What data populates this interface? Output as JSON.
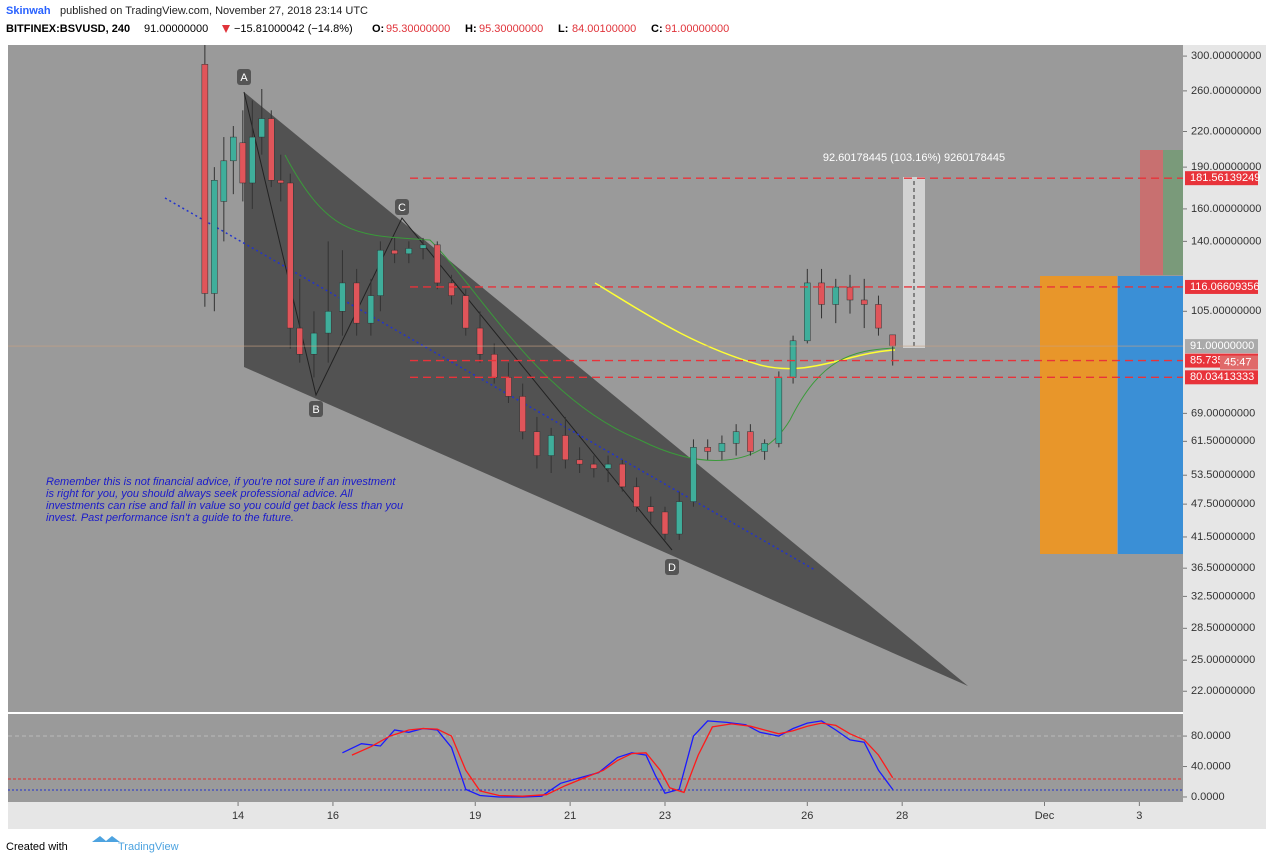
{
  "header": {
    "author": "Skinwah",
    "published": "published on TradingView.com, November 27, 2018 23:14 UTC",
    "symbol": "BITFINEX:BSVUSD, 240",
    "last": "91.00000000",
    "change": "−15.81000042 (−14.8%)",
    "ohlc": [
      {
        "label": "O:",
        "value": "95.30000000"
      },
      {
        "label": "H:",
        "value": "95.30000000"
      },
      {
        "label": "L:",
        "value": "84.00100000"
      },
      {
        "label": "C:",
        "value": "91.00000000"
      }
    ]
  },
  "annotations": {
    "disclaimer": "Remember this is not financial advice, if you're not sure if an investment is right for you, you should always seek professional advice. All investments can rise and fall in value so you could get back less than you invest. Past performance isn't a guide to the future.",
    "measure": "92.60178445 (103.16%) 9260178445",
    "points": [
      "A",
      "B",
      "C",
      "D"
    ],
    "countdown": "45:47"
  },
  "footer": {
    "created": "Created with",
    "brand": "TradingView"
  },
  "chart_data": [
    {
      "type": "candlestick",
      "log": true,
      "up_color": "#3fae9b",
      "down_color": "#e0555a",
      "xlim": [
        9.15,
        33.92
      ],
      "ylim": [
        20.2,
        314
      ],
      "xticks": [
        14,
        16,
        19,
        21,
        23,
        26,
        28,
        {
          "value": 31,
          "label": "Dec"
        },
        {
          "value": 33,
          "label": "3"
        }
      ],
      "yticks": [
        {
          "value": 300,
          "label": "300.00000000"
        },
        {
          "value": 260,
          "label": "260.00000000"
        },
        {
          "value": 220,
          "label": "220.00000000"
        },
        {
          "value": 190,
          "label": "190.00000000"
        },
        {
          "value": 160,
          "label": "160.00000000"
        },
        {
          "value": 140,
          "label": "140.00000000"
        },
        {
          "value": 105,
          "label": "105.00000000"
        },
        {
          "value": 69,
          "label": "69.00000000"
        },
        {
          "value": 61.5,
          "label": "61.50000000"
        },
        {
          "value": 53.5,
          "label": "53.50000000"
        },
        {
          "value": 47.5,
          "label": "47.50000000"
        },
        {
          "value": 41.5,
          "label": "41.50000000"
        },
        {
          "value": 36.5,
          "label": "36.50000000"
        },
        {
          "value": 32.5,
          "label": "32.50000000"
        },
        {
          "value": 28.5,
          "label": "28.50000000"
        },
        {
          "value": 25,
          "label": "25.00000000"
        },
        {
          "value": 22,
          "label": "22.00000000"
        }
      ],
      "levels": [
        {
          "value": 181.56139249,
          "label": "181.56139249",
          "color": "#e8333a"
        },
        {
          "value": 116.06609356,
          "label": "116.06609356",
          "color": "#e8333a"
        },
        {
          "value": 91,
          "label": "91.00000000",
          "color": "#aaaaaa"
        },
        {
          "value": 85.735,
          "label": "85.735",
          "color": "#e8333a"
        },
        {
          "value": 80.03413333,
          "label": "80.03413333",
          "color": "#e8333a"
        }
      ],
      "x": [
        13.3,
        13.5,
        13.7,
        13.9,
        14.1,
        14.3,
        14.5,
        14.7,
        14.9,
        15.1,
        15.3,
        15.6,
        15.9,
        16.2,
        16.5,
        16.8,
        17.0,
        17.3,
        17.6,
        17.9,
        18.2,
        18.5,
        18.8,
        19.1,
        19.4,
        19.7,
        20.0,
        20.3,
        20.6,
        20.9,
        21.2,
        21.5,
        21.8,
        22.1,
        22.4,
        22.7,
        23.0,
        23.3,
        23.6,
        23.9,
        24.2,
        24.5,
        24.8,
        25.1,
        25.4,
        25.7,
        26.0,
        26.3,
        26.6,
        26.9,
        27.2,
        27.5,
        27.8
      ],
      "open": [
        290,
        113,
        165,
        195,
        210,
        178,
        215,
        232,
        180,
        178,
        98,
        88,
        96,
        105,
        118,
        100,
        112,
        135,
        133,
        136,
        138,
        118,
        112,
        98,
        88,
        80,
        74,
        64,
        58,
        63,
        57,
        56,
        55,
        56,
        51,
        47,
        46,
        42,
        48,
        60,
        59,
        61,
        64,
        59,
        61,
        80,
        93,
        118,
        108,
        116,
        110,
        108,
        95.3
      ],
      "high": [
        314,
        190,
        215,
        225,
        240,
        250,
        262,
        240,
        200,
        185,
        120,
        105,
        140,
        135,
        125,
        120,
        140,
        142,
        140,
        142,
        140,
        122,
        115,
        105,
        92,
        85,
        78,
        68,
        65,
        68,
        60,
        58,
        58,
        57,
        53,
        49,
        47,
        50,
        62,
        62,
        63,
        66,
        66,
        62,
        82,
        95,
        125,
        125,
        120,
        122,
        120,
        112,
        95.3
      ],
      "low": [
        107,
        105,
        140,
        170,
        165,
        160,
        200,
        175,
        165,
        90,
        85,
        80,
        85,
        95,
        95,
        95,
        105,
        128,
        128,
        130,
        115,
        108,
        95,
        85,
        78,
        72,
        62,
        55,
        54,
        55,
        54,
        53,
        52,
        50,
        46,
        44,
        41,
        41,
        47,
        57,
        57,
        58,
        58,
        57,
        60,
        78,
        92,
        102,
        100,
        104,
        98,
        95,
        84
      ],
      "close": [
        113,
        180,
        195,
        215,
        178,
        215,
        232,
        180,
        178,
        98,
        88,
        96,
        105,
        118,
        100,
        112,
        135,
        133,
        136,
        138,
        118,
        112,
        98,
        88,
        80,
        74,
        64,
        58,
        63,
        57,
        56,
        55,
        56,
        51,
        47,
        46,
        42,
        48,
        60,
        59,
        61,
        64,
        59,
        61,
        80,
        93,
        118,
        108,
        116,
        110,
        108,
        98,
        91
      ]
    },
    {
      "type": "line",
      "ylim": [
        -6.6,
        109
      ],
      "yticks": [
        {
          "value": 80,
          "label": "80.0000"
        },
        {
          "value": 40,
          "label": "40.0000"
        },
        {
          "value": 0,
          "label": "0.0000"
        }
      ],
      "series": [
        {
          "color": "#1a1aff",
          "x": [
            16.2,
            16.6,
            17.0,
            17.3,
            17.6,
            17.9,
            18.2,
            18.5,
            18.8,
            19.1,
            19.5,
            20.0,
            20.4,
            20.8,
            21.2,
            21.6,
            22.0,
            22.3,
            22.6,
            22.8,
            23.0,
            23.3,
            23.6,
            23.9,
            24.3,
            24.7,
            25.0,
            25.4,
            25.7,
            26.0,
            26.3,
            26.6,
            26.9,
            27.2,
            27.5,
            27.8
          ],
          "values": [
            58,
            70,
            67,
            88,
            85,
            90,
            88,
            65,
            10,
            2,
            0,
            0,
            1,
            18,
            25,
            32,
            52,
            58,
            55,
            28,
            5,
            10,
            80,
            100,
            98,
            95,
            85,
            80,
            90,
            97,
            100,
            88,
            75,
            72,
            35,
            10
          ]
        },
        {
          "color": "#ff1a1a",
          "x": [
            16.4,
            16.8,
            17.2,
            17.6,
            17.9,
            18.2,
            18.5,
            18.8,
            19.1,
            19.5,
            20.0,
            20.5,
            20.9,
            21.3,
            21.7,
            22.0,
            22.3,
            22.6,
            22.9,
            23.1,
            23.4,
            23.7,
            24.0,
            24.4,
            24.8,
            25.1,
            25.4,
            25.7,
            26.0,
            26.3,
            26.6,
            26.9,
            27.2,
            27.5,
            27.8
          ],
          "values": [
            55,
            66,
            80,
            88,
            90,
            89,
            80,
            35,
            8,
            2,
            1,
            3,
            15,
            25,
            35,
            48,
            57,
            58,
            35,
            12,
            6,
            55,
            92,
            96,
            93,
            88,
            83,
            87,
            93,
            97,
            94,
            83,
            75,
            55,
            25
          ]
        }
      ]
    }
  ]
}
